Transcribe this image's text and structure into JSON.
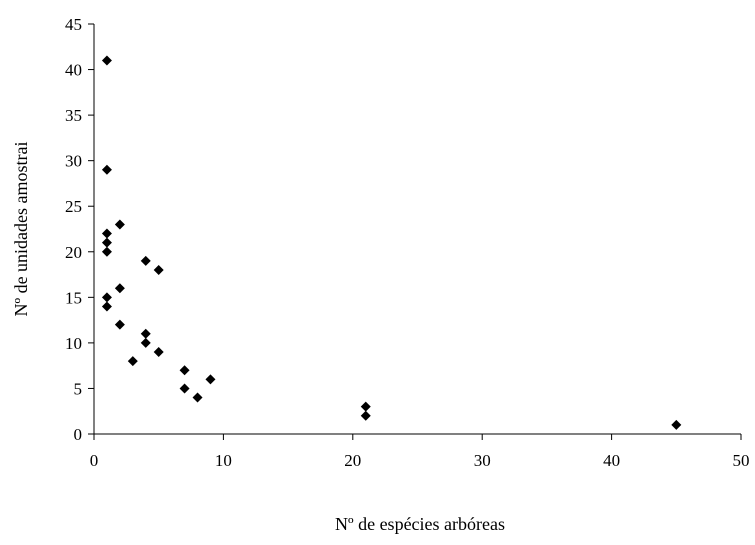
{
  "chart_data": {
    "type": "scatter",
    "title": "",
    "xlabel": "Nº de espécies arbóreas",
    "ylabel": "Nº de unidades amostrai",
    "xlim": [
      0,
      50
    ],
    "ylim": [
      0,
      45
    ],
    "xticks": [
      0,
      10,
      20,
      30,
      40,
      50
    ],
    "yticks": [
      0,
      5,
      10,
      15,
      20,
      25,
      30,
      35,
      40,
      45
    ],
    "grid": false,
    "legend": "none",
    "marker": "diamond",
    "marker_color": "#000000",
    "points": [
      {
        "x": 1,
        "y": 41
      },
      {
        "x": 1,
        "y": 29
      },
      {
        "x": 1,
        "y": 22
      },
      {
        "x": 1,
        "y": 21
      },
      {
        "x": 1,
        "y": 20
      },
      {
        "x": 1,
        "y": 15
      },
      {
        "x": 1,
        "y": 14
      },
      {
        "x": 2,
        "y": 23
      },
      {
        "x": 2,
        "y": 16
      },
      {
        "x": 2,
        "y": 12
      },
      {
        "x": 3,
        "y": 8
      },
      {
        "x": 4,
        "y": 19
      },
      {
        "x": 4,
        "y": 11
      },
      {
        "x": 4,
        "y": 10
      },
      {
        "x": 5,
        "y": 18
      },
      {
        "x": 5,
        "y": 9
      },
      {
        "x": 7,
        "y": 7
      },
      {
        "x": 7,
        "y": 5
      },
      {
        "x": 8,
        "y": 4
      },
      {
        "x": 9,
        "y": 6
      },
      {
        "x": 21,
        "y": 3
      },
      {
        "x": 21,
        "y": 2
      },
      {
        "x": 45,
        "y": 1
      }
    ]
  }
}
